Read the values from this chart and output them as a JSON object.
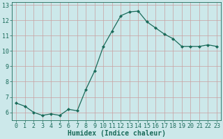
{
  "x": [
    0,
    1,
    2,
    3,
    4,
    5,
    6,
    7,
    8,
    9,
    10,
    11,
    12,
    13,
    14,
    15,
    16,
    17,
    18,
    19,
    20,
    21,
    22,
    23
  ],
  "y": [
    6.6,
    6.4,
    6.0,
    5.8,
    5.9,
    5.8,
    6.2,
    6.1,
    7.5,
    8.7,
    10.3,
    11.3,
    12.3,
    12.55,
    12.6,
    11.9,
    11.5,
    11.1,
    10.8,
    10.3,
    10.3,
    10.3,
    10.4,
    10.3
  ],
  "xlabel": "Humidex (Indice chaleur)",
  "ylim": [
    5.5,
    13.2
  ],
  "xlim": [
    -0.5,
    23.5
  ],
  "yticks": [
    6,
    7,
    8,
    9,
    10,
    11,
    12,
    13
  ],
  "xticks": [
    0,
    1,
    2,
    3,
    4,
    5,
    6,
    7,
    8,
    9,
    10,
    11,
    12,
    13,
    14,
    15,
    16,
    17,
    18,
    19,
    20,
    21,
    22,
    23
  ],
  "xtick_labels": [
    "0",
    "1",
    "2",
    "3",
    "4",
    "5",
    "6",
    "7",
    "8",
    "9",
    "10",
    "11",
    "12",
    "13",
    "14",
    "15",
    "16",
    "17",
    "18",
    "19",
    "20",
    "21",
    "22",
    "23"
  ],
  "line_color": "#1a6b5a",
  "marker": "D",
  "marker_size": 2.0,
  "bg_color": "#cce8ea",
  "grid_color": "#c8a0a0",
  "axis_bg": "#cce8ea",
  "tick_fontsize": 6.0,
  "xlabel_fontsize": 7.0
}
